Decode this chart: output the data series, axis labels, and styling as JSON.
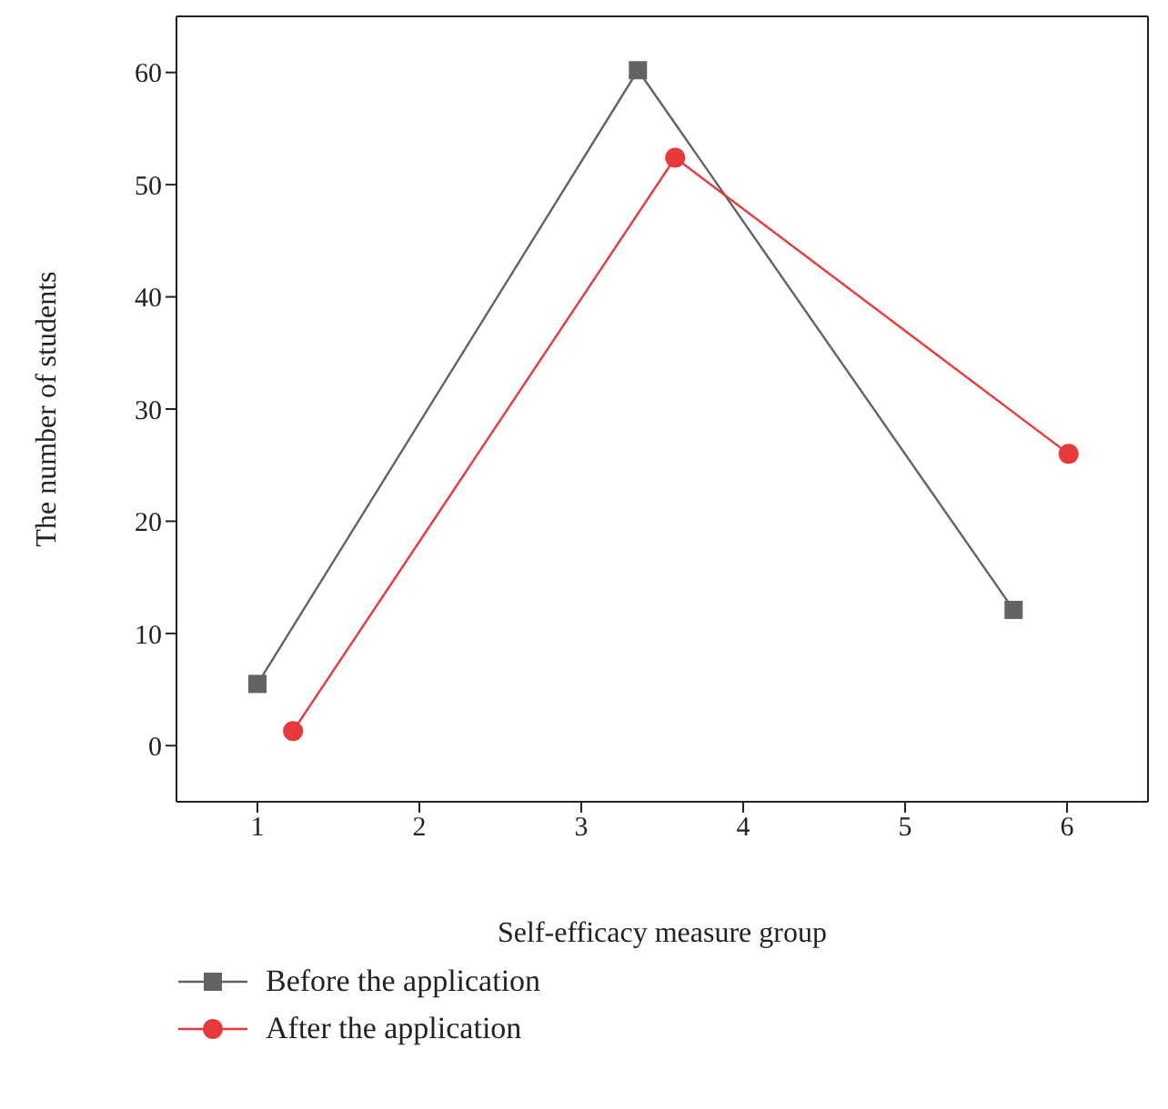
{
  "chart_data": {
    "type": "line",
    "xlabel": "Self-efficacy measure group",
    "ylabel": "The number of students",
    "series": [
      {
        "name": "Before the application",
        "color": "#636363",
        "marker": "square",
        "x": [
          1,
          3.35,
          5.67
        ],
        "values": [
          5.5,
          60.2,
          12.1
        ]
      },
      {
        "name": "After the application",
        "color": "#e8393a",
        "marker": "circle",
        "x": [
          1.22,
          3.58,
          6.01
        ],
        "values": [
          1.3,
          52.4,
          26.0
        ]
      }
    ],
    "xlim": [
      0.5,
      6.5
    ],
    "xticks": [
      1,
      2,
      3,
      4,
      5,
      6
    ],
    "ylim": [
      -5,
      65
    ],
    "yticks": [
      0,
      10,
      20,
      30,
      40,
      50,
      60
    ],
    "legend": "bottom"
  }
}
